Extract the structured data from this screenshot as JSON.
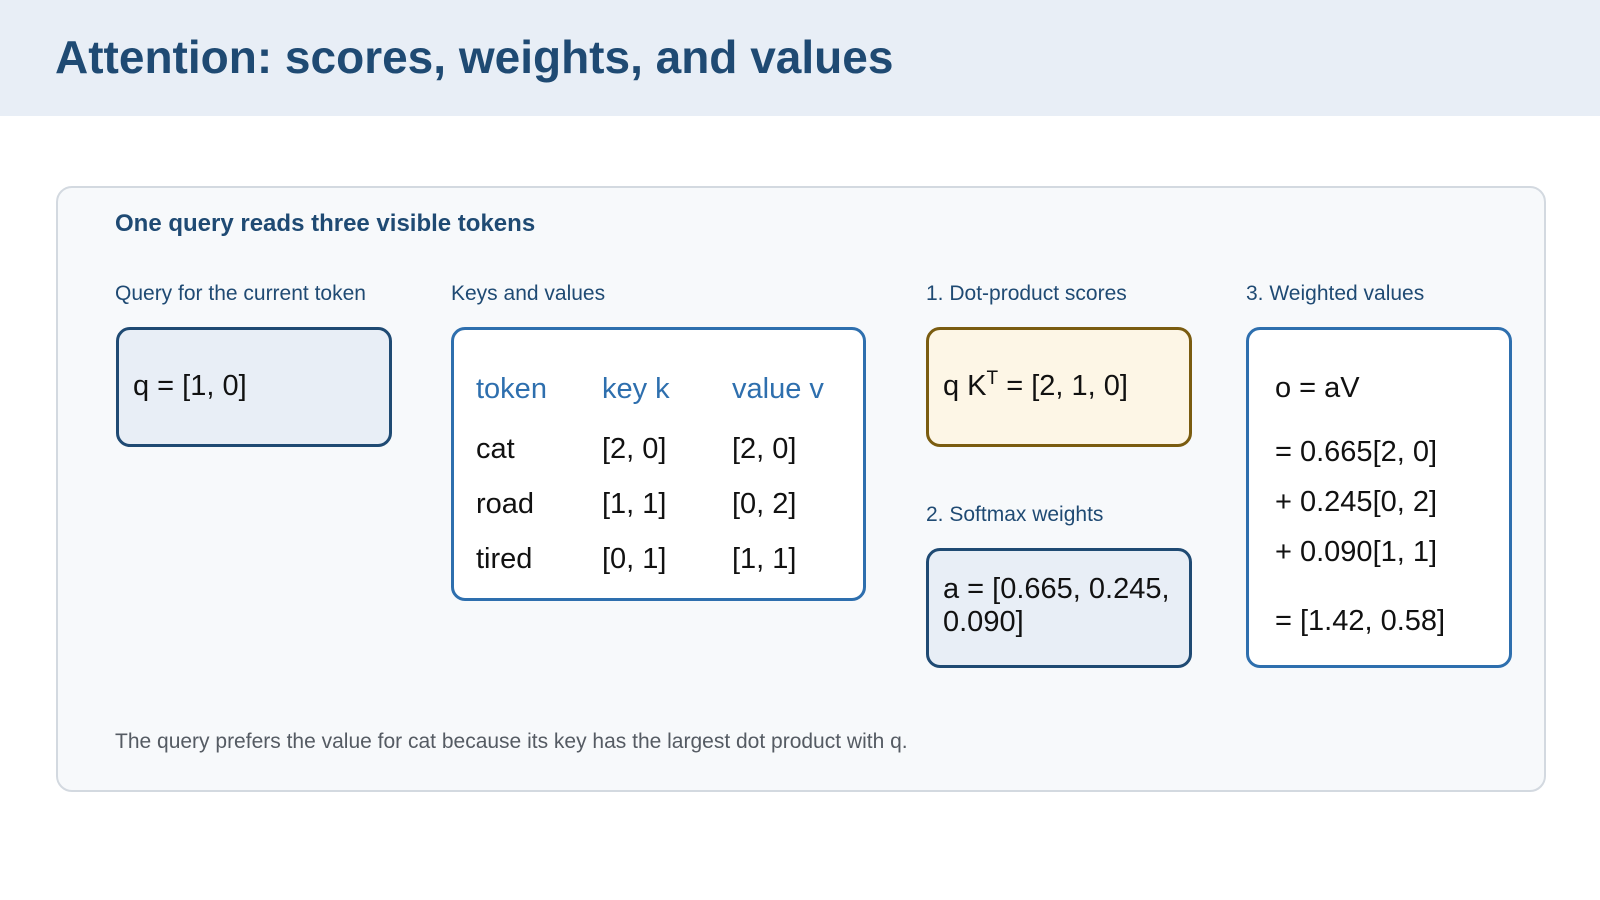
{
  "title": "Attention: scores, weights, and values",
  "panel": {
    "title": "One query reads three visible tokens",
    "caption": "The query prefers the value for cat because its key has the largest dot product with q."
  },
  "query": {
    "label": "Query for the current token",
    "formula": "q = [1, 0]"
  },
  "keys_values": {
    "label": "Keys and values",
    "headers": [
      "token",
      "key k",
      "value v"
    ],
    "rows": [
      [
        "cat",
        "[2, 0]",
        "[2, 0]"
      ],
      [
        "road",
        "[1, 1]",
        "[0, 2]"
      ],
      [
        "tired",
        "[0, 1]",
        "[1, 1]"
      ]
    ]
  },
  "scores": {
    "label": "1. Dot-product scores",
    "lhs": "q K",
    "sup": "T",
    "rhs": " = [2, 1, 0]"
  },
  "softmax": {
    "label": "2. Softmax weights",
    "formula": "a = [0.665, 0.245, 0.090]"
  },
  "weighted": {
    "label": "3. Weighted values",
    "lines": [
      "o = aV",
      "= 0.665[2, 0]",
      "+ 0.245[0, 2]",
      "+ 0.090[1, 1]",
      "= [1.42, 0.58]"
    ]
  },
  "colors": {
    "header_bg": "#e8eef6",
    "title": "#1f4a73",
    "accent_blue": "#2e6fae",
    "score_border": "#7a5c10",
    "score_bg": "#fdf6e6"
  }
}
